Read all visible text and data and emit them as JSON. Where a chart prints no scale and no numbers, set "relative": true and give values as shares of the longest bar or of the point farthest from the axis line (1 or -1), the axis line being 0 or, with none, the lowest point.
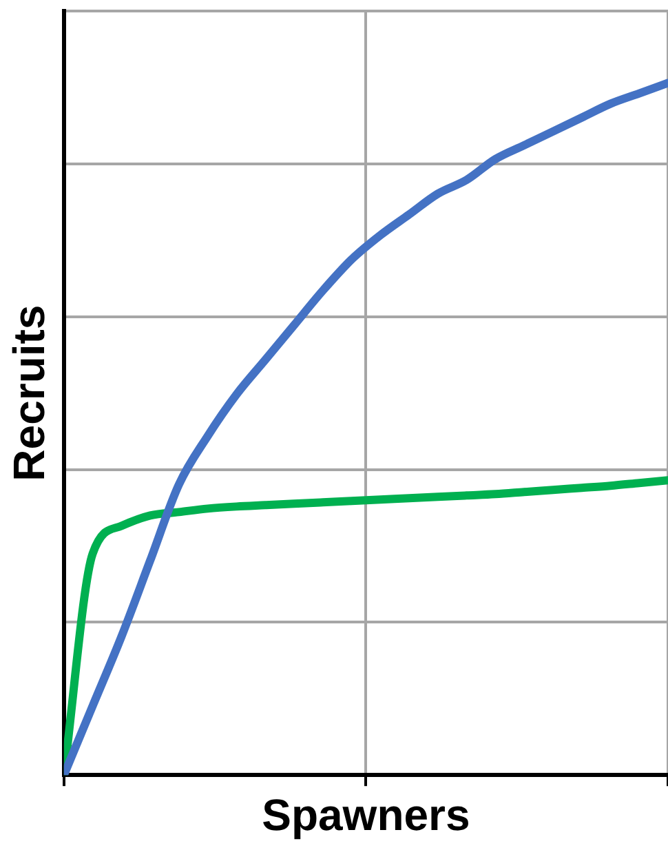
{
  "chart_data": {
    "type": "line",
    "relative": true,
    "xlabel": "Spawners",
    "ylabel": "Recruits",
    "grid": true,
    "legend": false,
    "tick_labels": false,
    "marker": "none",
    "line_style": "solid",
    "categories": [
      null,
      null,
      null,
      null,
      null,
      null,
      null,
      null,
      null,
      null,
      null,
      null,
      null,
      null,
      null,
      null,
      null,
      null,
      null,
      null,
      null,
      null
    ],
    "series": [
      {
        "color": "#4472c4",
        "values": [
          0,
          0.1,
          0.2,
          0.31,
          0.42,
          0.49,
          0.55,
          0.6,
          0.65,
          0.7,
          0.745,
          0.78,
          0.81,
          0.84,
          0.86,
          0.89,
          0.91,
          0.93,
          0.95,
          0.97,
          0.985,
          1
        ]
      },
      {
        "color": "#00b050",
        "values": [
          0,
          0.32,
          0.36,
          0.375,
          0.38,
          0.385,
          0.388,
          0.39,
          0.392,
          0.394,
          0.396,
          0.398,
          0.4,
          0.402,
          0.404,
          0.406,
          0.409,
          0.412,
          0.415,
          0.418,
          0.422,
          0.426
        ]
      }
    ]
  }
}
